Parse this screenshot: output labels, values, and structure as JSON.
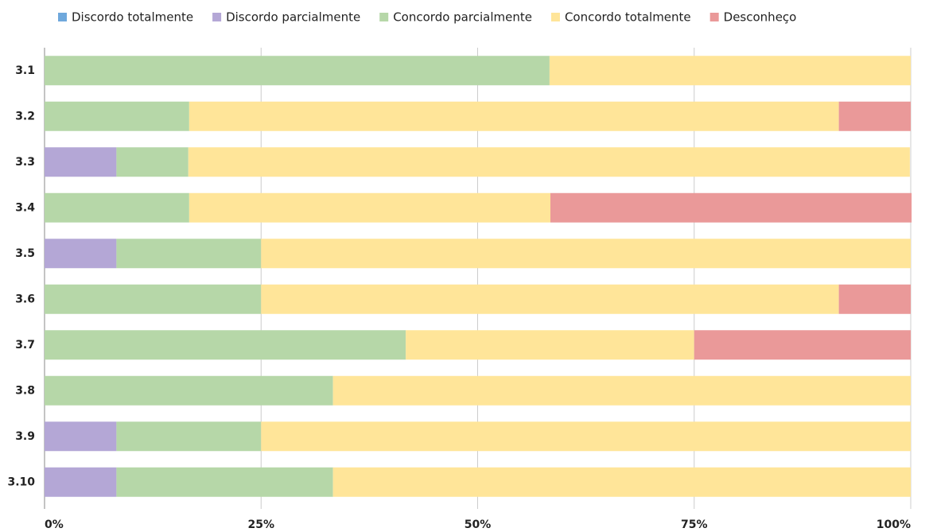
{
  "chart_data": {
    "type": "stacked_barh",
    "categories": [
      "3.1",
      "3.2",
      "3.3",
      "3.4",
      "3.5",
      "3.6",
      "3.7",
      "3.8",
      "3.9",
      "3.10"
    ],
    "series": [
      {
        "name": "Discordo totalmente",
        "color": "#6fa8dc",
        "values": [
          0,
          0,
          0,
          0,
          0,
          0,
          0,
          0,
          0,
          0
        ]
      },
      {
        "name": "Discordo parcialmente",
        "color": "#b4a7d6",
        "values": [
          0,
          0,
          8.3,
          0,
          8.3,
          0,
          0,
          0,
          8.3,
          8.3
        ]
      },
      {
        "name": "Concordo parcialmente",
        "color": "#b6d7a8",
        "values": [
          58.3,
          16.7,
          8.3,
          16.7,
          16.7,
          25,
          41.7,
          33.3,
          16.7,
          25
        ]
      },
      {
        "name": "Concordo totalmente",
        "color": "#ffe599",
        "values": [
          41.7,
          75,
          83.3,
          41.7,
          75,
          66.7,
          33.3,
          66.7,
          75,
          66.7
        ]
      },
      {
        "name": "Desconheço",
        "color": "#ea9999",
        "values": [
          0,
          8.3,
          0,
          41.7,
          0,
          8.3,
          25,
          0,
          0,
          0
        ]
      }
    ],
    "xlim": [
      0,
      100
    ],
    "xticks": [
      {
        "value": 0,
        "label": "0%"
      },
      {
        "value": 25,
        "label": "25%"
      },
      {
        "value": 50,
        "label": "50%"
      },
      {
        "value": 75,
        "label": "75%"
      },
      {
        "value": 100,
        "label": "100%"
      }
    ],
    "grid": true,
    "legend": "top"
  }
}
